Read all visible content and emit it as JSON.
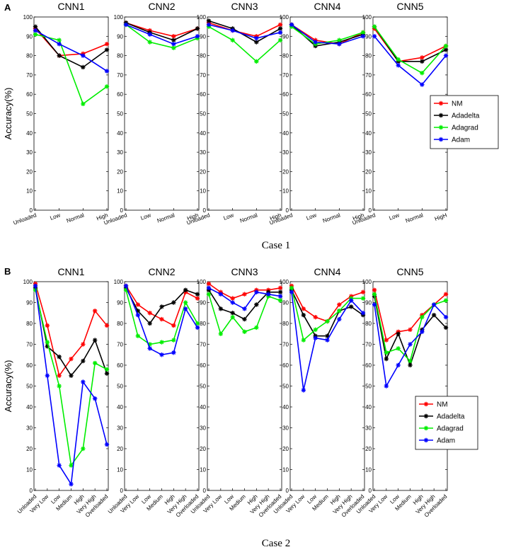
{
  "colors": {
    "NM": "#ff0000",
    "Adadelta": "#000000",
    "Adagrad": "#00ee00",
    "Adam": "#0000ff"
  },
  "chart_data": [
    {
      "type": "line",
      "panel_label": "A",
      "case_label": "Case 1",
      "ylabel": "Accuracy(%)",
      "ylim": [
        0,
        100
      ],
      "yticks": [
        0,
        10,
        20,
        30,
        40,
        50,
        60,
        70,
        80,
        90,
        100
      ],
      "legend": [
        "NM",
        "Adadelta",
        "Adagrad",
        "Adam"
      ],
      "legend_position": "right of CNN5",
      "subplots": [
        {
          "title": "CNN1",
          "categories": [
            "Unloaded",
            "Low",
            "Normal",
            "High"
          ],
          "series": [
            {
              "name": "NM",
              "values": [
                94,
                80,
                81,
                86
              ]
            },
            {
              "name": "Adadelta",
              "values": [
                95,
                80,
                74,
                83
              ]
            },
            {
              "name": "Adagrad",
              "values": [
                91,
                88,
                55,
                64
              ]
            },
            {
              "name": "Adam",
              "values": [
                93,
                86,
                80,
                72
              ]
            }
          ]
        },
        {
          "title": "CNN2",
          "categories": [
            "Unloaded",
            "Low",
            "Normal",
            "High"
          ],
          "series": [
            {
              "name": "NM",
              "values": [
                97,
                93,
                90,
                94
              ]
            },
            {
              "name": "Adadelta",
              "values": [
                97,
                92,
                88,
                94
              ]
            },
            {
              "name": "Adagrad",
              "values": [
                96,
                87,
                84,
                89
              ]
            },
            {
              "name": "Adam",
              "values": [
                96,
                91,
                86,
                90
              ]
            }
          ]
        },
        {
          "title": "CNN3",
          "categories": [
            "Unloaded",
            "Low",
            "Normal",
            "High"
          ],
          "series": [
            {
              "name": "NM",
              "values": [
                97,
                93,
                90,
                96
              ]
            },
            {
              "name": "Adadelta",
              "values": [
                98,
                94,
                87,
                94
              ]
            },
            {
              "name": "Adagrad",
              "values": [
                95,
                88,
                77,
                88
              ]
            },
            {
              "name": "Adam",
              "values": [
                96,
                93,
                89,
                92
              ]
            }
          ]
        },
        {
          "title": "CNN4",
          "categories": [
            "Unloaded",
            "Low",
            "Normal",
            "High"
          ],
          "series": [
            {
              "name": "NM",
              "values": [
                96,
                88,
                86,
                92
              ]
            },
            {
              "name": "Adadelta",
              "values": [
                96,
                85,
                87,
                91
              ]
            },
            {
              "name": "Adagrad",
              "values": [
                95,
                86,
                88,
                92
              ]
            },
            {
              "name": "Adam",
              "values": [
                96,
                87,
                86,
                90
              ]
            }
          ]
        },
        {
          "title": "CNN5",
          "categories": [
            "Unloaded",
            "Low",
            "Normal",
            "HigH"
          ],
          "series": [
            {
              "name": "NM",
              "values": [
                94,
                77,
                79,
                85
              ]
            },
            {
              "name": "Adadelta",
              "values": [
                95,
                77,
                77,
                83
              ]
            },
            {
              "name": "Adagrad",
              "values": [
                95,
                78,
                71,
                85
              ]
            },
            {
              "name": "Adam",
              "values": [
                90,
                75,
                65,
                80
              ]
            }
          ]
        }
      ]
    },
    {
      "type": "line",
      "panel_label": "B",
      "case_label": "Case 2",
      "ylabel": "Accuracy(%)",
      "ylim": [
        0,
        100
      ],
      "yticks": [
        0,
        10,
        20,
        30,
        40,
        50,
        60,
        70,
        80,
        90,
        100
      ],
      "legend": [
        "NM",
        "Adadelta",
        "Adagrad",
        "Adam"
      ],
      "legend_position": "right of CNN4",
      "subplots": [
        {
          "title": "CNN1",
          "categories": [
            "Unloaded",
            "Very Low",
            "Low",
            "Medium",
            "High",
            "Very High",
            "Overloaded"
          ],
          "series": [
            {
              "name": "NM",
              "values": [
                99,
                79,
                55,
                63,
                70,
                86,
                79
              ]
            },
            {
              "name": "Adadelta",
              "values": [
                97,
                69,
                64,
                55,
                62,
                72,
                56
              ]
            },
            {
              "name": "Adagrad",
              "values": [
                96,
                71,
                50,
                12,
                20,
                61,
                58
              ]
            },
            {
              "name": "Adam",
              "values": [
                98,
                55,
                12,
                3,
                52,
                44,
                22
              ]
            }
          ]
        },
        {
          "title": "CNN2",
          "categories": [
            "Unloaded",
            "Very Low",
            "Low",
            "Medium",
            "High",
            "Very High",
            "Overloaded"
          ],
          "series": [
            {
              "name": "NM",
              "values": [
                98,
                89,
                85,
                82,
                79,
                95,
                92
              ]
            },
            {
              "name": "Adadelta",
              "values": [
                97,
                86,
                80,
                88,
                90,
                96,
                94
              ]
            },
            {
              "name": "Adagrad",
              "values": [
                96,
                74,
                70,
                71,
                72,
                90,
                80
              ]
            },
            {
              "name": "Adam",
              "values": [
                98,
                84,
                68,
                65,
                66,
                87,
                78
              ]
            }
          ]
        },
        {
          "title": "CNN3",
          "categories": [
            "Unloaded",
            "Very Low",
            "Low",
            "Medium",
            "High",
            "Very High",
            "Overloaded"
          ],
          "series": [
            {
              "name": "NM",
              "values": [
                99,
                95,
                92,
                94,
                96,
                96,
                97
              ]
            },
            {
              "name": "Adadelta",
              "values": [
                96,
                87,
                85,
                82,
                89,
                95,
                95
              ]
            },
            {
              "name": "Adagrad",
              "values": [
                94,
                75,
                83,
                76,
                78,
                93,
                91
              ]
            },
            {
              "name": "Adam",
              "values": [
                97,
                94,
                90,
                87,
                95,
                94,
                93
              ]
            }
          ]
        },
        {
          "title": "CNN4",
          "categories": [
            "Unloaded",
            "Very Low",
            "Low",
            "Medium",
            "High",
            "Very High",
            "Overloaded"
          ],
          "series": [
            {
              "name": "NM",
              "values": [
                98,
                87,
                83,
                81,
                89,
                93,
                95
              ]
            },
            {
              "name": "Adadelta",
              "values": [
                96,
                84,
                74,
                74,
                86,
                88,
                84
              ]
            },
            {
              "name": "Adagrad",
              "values": [
                97,
                72,
                77,
                81,
                86,
                92,
                92
              ]
            },
            {
              "name": "Adam",
              "values": [
                95,
                48,
                73,
                72,
                82,
                91,
                85
              ]
            }
          ]
        },
        {
          "title": "CNN5",
          "categories": [
            "Unloaded",
            "Very Low",
            "Low",
            "Medium",
            "High",
            "Very High",
            "Overloaded"
          ],
          "series": [
            {
              "name": "NM",
              "values": [
                96,
                72,
                76,
                77,
                84,
                89,
                94
              ]
            },
            {
              "name": "Adadelta",
              "values": [
                93,
                63,
                75,
                60,
                77,
                84,
                78
              ]
            },
            {
              "name": "Adagrad",
              "values": [
                94,
                66,
                68,
                62,
                83,
                89,
                91
              ]
            },
            {
              "name": "Adam",
              "values": [
                89,
                50,
                60,
                70,
                76,
                89,
                83
              ]
            }
          ]
        }
      ]
    }
  ]
}
